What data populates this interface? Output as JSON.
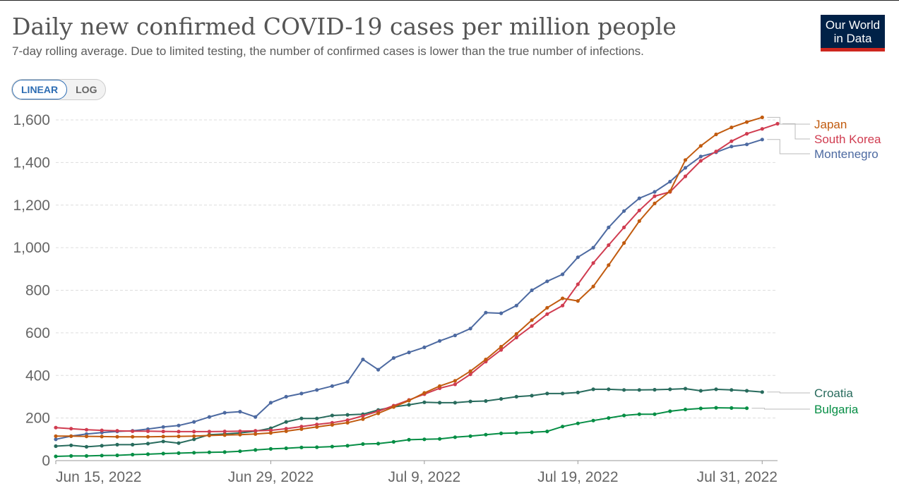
{
  "header": {
    "title": "Daily new confirmed COVID-19 cases per million people",
    "subtitle": "7-day rolling average. Due to limited testing, the number of confirmed cases is lower than the true number of infections.",
    "logo_line1": "Our World",
    "logo_line2": "in Data"
  },
  "controls": {
    "linear_label": "LINEAR",
    "log_label": "LOG",
    "selected": "LINEAR"
  },
  "chart_data": {
    "type": "line",
    "title": "Daily new confirmed COVID-19 cases per million people",
    "subtitle": "7-day rolling average. Due to limited testing, the number of confirmed cases is lower than the true number of infections.",
    "x_start": "2022-06-15",
    "x_ticks": [
      "Jun 15, 2022",
      "Jun 29, 2022",
      "Jul 9, 2022",
      "Jul 19, 2022",
      "Jul 31, 2022"
    ],
    "y_ticks": [
      "0",
      "200",
      "400",
      "600",
      "800",
      "1,000",
      "1,200",
      "1,400",
      "1,600"
    ],
    "ylim": [
      0,
      1600
    ],
    "grid": "horizontal dashed",
    "legend": "right (line-end labels)",
    "series": [
      {
        "name": "Japan",
        "color": "#c15b0f",
        "values": [
          115,
          115,
          114,
          113,
          112,
          112,
          112,
          113,
          114,
          115,
          118,
          120,
          122,
          125,
          130,
          138,
          148,
          158,
          168,
          178,
          195,
          222,
          252,
          282,
          318,
          350,
          375,
          420,
          475,
          535,
          595,
          660,
          718,
          762,
          750,
          818,
          918,
          1022,
          1125,
          1208,
          1265,
          1412,
          1478,
          1532,
          1565,
          1590,
          1612
        ]
      },
      {
        "name": "South Korea",
        "color": "#d03c50",
        "values": [
          155,
          150,
          145,
          142,
          140,
          138,
          138,
          137,
          136,
          136,
          136,
          137,
          138,
          140,
          142,
          150,
          160,
          170,
          178,
          190,
          210,
          232,
          258,
          285,
          312,
          340,
          358,
          405,
          465,
          520,
          578,
          632,
          688,
          728,
          828,
          928,
          1012,
          1095,
          1175,
          1242,
          1262,
          1335,
          1408,
          1452,
          1500,
          1535,
          1558,
          1582
        ]
      },
      {
        "name": "Montenegro",
        "color": "#4d6aa1",
        "values": [
          100,
          115,
          125,
          132,
          137,
          140,
          148,
          158,
          165,
          182,
          205,
          225,
          230,
          205,
          272,
          300,
          315,
          332,
          350,
          370,
          475,
          427,
          482,
          508,
          532,
          562,
          588,
          620,
          695,
          692,
          728,
          800,
          842,
          875,
          955,
          1000,
          1095,
          1172,
          1232,
          1262,
          1310,
          1375,
          1428,
          1448,
          1475,
          1485,
          1508
        ]
      },
      {
        "name": "Croatia",
        "color": "#286b5d",
        "values": [
          68,
          72,
          65,
          70,
          75,
          75,
          80,
          90,
          82,
          100,
          122,
          125,
          130,
          138,
          152,
          182,
          198,
          198,
          212,
          215,
          218,
          238,
          252,
          262,
          274,
          272,
          272,
          278,
          280,
          290,
          300,
          305,
          315,
          315,
          320,
          335,
          335,
          332,
          332,
          333,
          335,
          338,
          328,
          335,
          332,
          328,
          322
        ]
      },
      {
        "name": "Bulgaria",
        "color": "#068e45",
        "values": [
          20,
          22,
          22,
          24,
          25,
          28,
          30,
          33,
          35,
          37,
          39,
          40,
          44,
          50,
          55,
          58,
          62,
          63,
          66,
          70,
          78,
          80,
          88,
          98,
          100,
          102,
          110,
          115,
          122,
          128,
          130,
          133,
          137,
          160,
          175,
          188,
          200,
          212,
          218,
          218,
          232,
          240,
          245,
          248,
          247,
          246
        ]
      }
    ]
  }
}
